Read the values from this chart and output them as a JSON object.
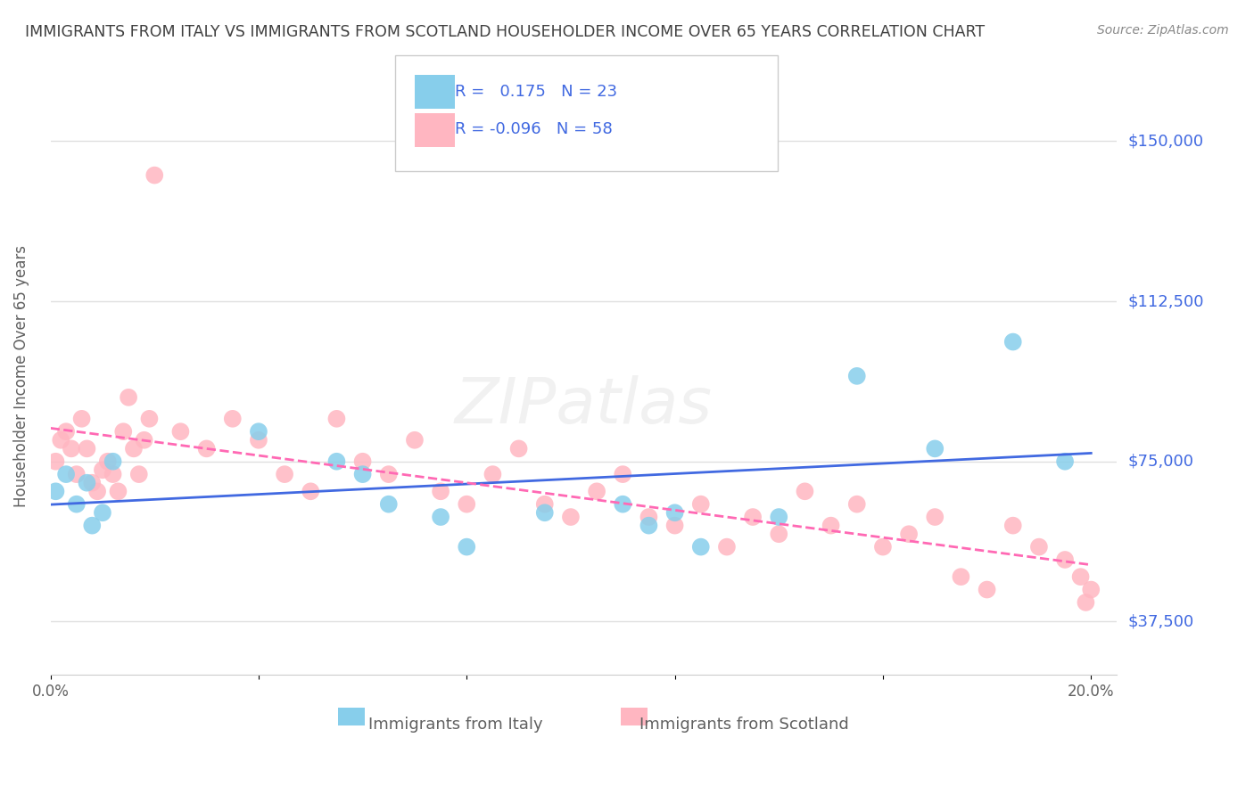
{
  "title": "IMMIGRANTS FROM ITALY VS IMMIGRANTS FROM SCOTLAND HOUSEHOLDER INCOME OVER 65 YEARS CORRELATION CHART",
  "source": "Source: ZipAtlas.com",
  "ylabel": "Householder Income Over 65 years",
  "italy_R": 0.175,
  "italy_N": 23,
  "scotland_R": -0.096,
  "scotland_N": 58,
  "italy_color": "#87CEEB",
  "scotland_color": "#FFB6C1",
  "italy_line_color": "#4169E1",
  "scotland_line_color": "#FF69B4",
  "italy_scatter_x": [
    0.001,
    0.003,
    0.005,
    0.007,
    0.008,
    0.01,
    0.012,
    0.04,
    0.055,
    0.06,
    0.065,
    0.075,
    0.08,
    0.095,
    0.11,
    0.115,
    0.12,
    0.125,
    0.14,
    0.155,
    0.17,
    0.185,
    0.195
  ],
  "italy_scatter_y": [
    68000,
    72000,
    65000,
    70000,
    60000,
    63000,
    75000,
    82000,
    75000,
    72000,
    65000,
    62000,
    55000,
    63000,
    65000,
    60000,
    63000,
    55000,
    62000,
    95000,
    78000,
    103000,
    75000
  ],
  "scotland_scatter_x": [
    0.001,
    0.002,
    0.003,
    0.004,
    0.005,
    0.006,
    0.007,
    0.008,
    0.009,
    0.01,
    0.011,
    0.012,
    0.013,
    0.014,
    0.015,
    0.016,
    0.017,
    0.018,
    0.019,
    0.02,
    0.025,
    0.03,
    0.035,
    0.04,
    0.045,
    0.05,
    0.055,
    0.06,
    0.065,
    0.07,
    0.075,
    0.08,
    0.085,
    0.09,
    0.095,
    0.1,
    0.105,
    0.11,
    0.115,
    0.12,
    0.125,
    0.13,
    0.135,
    0.14,
    0.145,
    0.15,
    0.155,
    0.16,
    0.165,
    0.17,
    0.175,
    0.18,
    0.185,
    0.19,
    0.195,
    0.198,
    0.199,
    0.2
  ],
  "scotland_scatter_y": [
    75000,
    80000,
    82000,
    78000,
    72000,
    85000,
    78000,
    70000,
    68000,
    73000,
    75000,
    72000,
    68000,
    82000,
    90000,
    78000,
    72000,
    80000,
    85000,
    142000,
    82000,
    78000,
    85000,
    80000,
    72000,
    68000,
    85000,
    75000,
    72000,
    80000,
    68000,
    65000,
    72000,
    78000,
    65000,
    62000,
    68000,
    72000,
    62000,
    60000,
    65000,
    55000,
    62000,
    58000,
    68000,
    60000,
    65000,
    55000,
    58000,
    62000,
    48000,
    45000,
    60000,
    55000,
    52000,
    48000,
    42000,
    45000
  ],
  "watermark": "ZIPatlas",
  "background_color": "#FFFFFF",
  "grid_color": "#E0E0E0",
  "title_color": "#404040",
  "axis_color": "#606060",
  "legend_color": "#4169E1",
  "ytick_vals": [
    37500,
    75000,
    112500,
    150000
  ],
  "ytick_labels": [
    "$37,500",
    "$75,000",
    "$112,500",
    "$150,000"
  ],
  "xtick_vals": [
    0.0,
    0.04,
    0.08,
    0.12,
    0.16,
    0.2
  ],
  "xtick_labels": [
    "0.0%",
    "",
    "",
    "",
    "",
    "20.0%"
  ]
}
